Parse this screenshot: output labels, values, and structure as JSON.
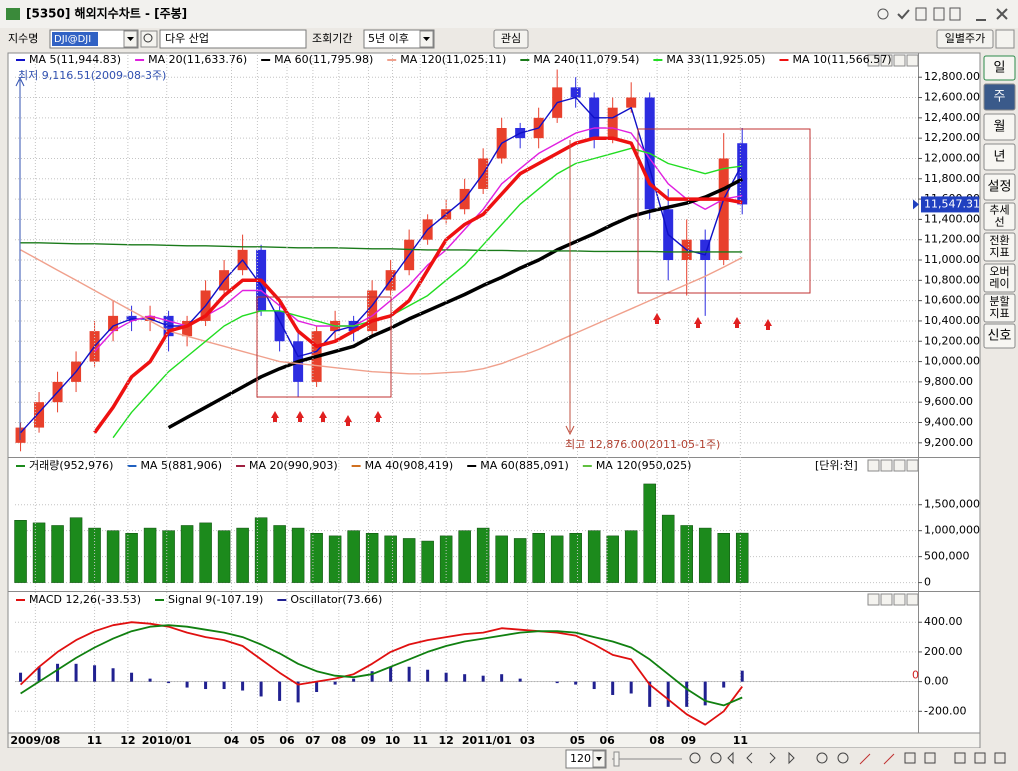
{
  "window": {
    "title": "[5350] 해외지수차트 - [주봉]"
  },
  "toolbar": {
    "index_label": "지수명",
    "index_code": "DJI@DJI",
    "index_name": "다우 산업",
    "period_label": "조회기간",
    "period_value": "5년 이후",
    "watch_button": "관심",
    "daily_button": "일별주가"
  },
  "side_buttons": [
    [
      "일"
    ],
    [
      "주"
    ],
    [
      "월"
    ],
    [
      "년"
    ],
    [
      "설정"
    ],
    [
      "추세",
      "선"
    ],
    [
      "전환",
      "지표"
    ],
    [
      "오버",
      "레이"
    ],
    [
      "분할",
      "지표"
    ],
    [
      "신호"
    ]
  ],
  "bottom_bar": {
    "count": "120"
  },
  "chart_data": [
    {
      "type": "candlestick",
      "xlim": [
        -0.3,
        48.5
      ],
      "ylim": [
        9080,
        12940
      ],
      "grid": true,
      "up_color": "#e8402c",
      "down_color": "#2c2ce0",
      "low_label": "최저 9,116.51(2009-08-3주)",
      "high_label": "최고 12,876.00(2011-05-1주)",
      "last_label": "11,547.31",
      "yticks": [
        {
          "value": 9200,
          "label": "9,200.00"
        },
        {
          "value": 9400,
          "label": "9,400.00"
        },
        {
          "value": 9600,
          "label": "9,600.00"
        },
        {
          "value": 9800,
          "label": "9,800.00"
        },
        {
          "value": 10000,
          "label": "10,000.00"
        },
        {
          "value": 10200,
          "label": "10,200.00"
        },
        {
          "value": 10400,
          "label": "10,400.00"
        },
        {
          "value": 10600,
          "label": "10,600.00"
        },
        {
          "value": 10800,
          "label": "10,800.00"
        },
        {
          "value": 11000,
          "label": "11,000.00"
        },
        {
          "value": 11200,
          "label": "11,200.00"
        },
        {
          "value": 11400,
          "label": "11,400.00"
        },
        {
          "value": 11600,
          "label": "11,600.00"
        },
        {
          "value": 11800,
          "label": "11,800.00"
        },
        {
          "value": 12000,
          "label": "12,000.00"
        },
        {
          "value": 12200,
          "label": "12,200.00"
        },
        {
          "value": 12400,
          "label": "12,400.00"
        },
        {
          "value": 12600,
          "label": "12,600.00"
        },
        {
          "value": 12800,
          "label": "12,800.00"
        }
      ],
      "x": [
        0,
        1,
        2,
        3,
        4,
        5,
        6,
        7,
        8,
        9,
        10,
        11,
        12,
        13,
        14,
        15,
        16,
        17,
        18,
        19,
        20,
        21,
        22,
        23,
        24,
        25,
        26,
        27,
        28,
        29,
        30,
        31,
        32,
        33,
        34,
        35,
        36,
        37,
        38,
        39
      ],
      "open": [
        9200,
        9350,
        9600,
        9800,
        10000,
        10300,
        10450,
        10400,
        10450,
        10250,
        10400,
        10700,
        10900,
        11100,
        10500,
        10200,
        9800,
        10300,
        10400,
        10300,
        10700,
        10900,
        11200,
        11400,
        11500,
        11700,
        12000,
        12300,
        12200,
        12400,
        12700,
        12600,
        12200,
        12500,
        12600,
        11500,
        11000,
        11200,
        11000,
        12150
      ],
      "high": [
        9400,
        9700,
        9900,
        10100,
        10400,
        10600,
        10550,
        10550,
        10500,
        10450,
        10800,
        11000,
        11250,
        11150,
        10600,
        10300,
        10350,
        10500,
        10450,
        10800,
        11000,
        11300,
        11450,
        11600,
        11800,
        12100,
        12400,
        12350,
        12500,
        12876,
        12800,
        12650,
        12600,
        12750,
        12650,
        11700,
        11400,
        11300,
        12250,
        12300
      ],
      "low": [
        9116.51,
        9300,
        9500,
        9700,
        9950,
        10200,
        10300,
        10300,
        10100,
        10150,
        10350,
        10650,
        10850,
        10450,
        10100,
        9650,
        9750,
        10200,
        10200,
        10250,
        10650,
        10850,
        11150,
        11350,
        11450,
        11650,
        11950,
        12100,
        12100,
        12350,
        12500,
        12100,
        12150,
        12450,
        11400,
        10800,
        10650,
        10450,
        10950,
        11450
      ],
      "close": [
        9350,
        9600,
        9800,
        10000,
        10300,
        10450,
        10400,
        10450,
        10250,
        10400,
        10700,
        10900,
        11100,
        10500,
        10200,
        9800,
        10300,
        10400,
        10300,
        10700,
        10900,
        11200,
        11400,
        11500,
        11700,
        12000,
        12300,
        12200,
        12400,
        12700,
        12600,
        12200,
        12500,
        12600,
        11500,
        11000,
        11200,
        11000,
        12000,
        11547.31
      ],
      "series": [
        {
          "name": "MA 5(11,944.83)",
          "color": "#1010c8",
          "values": [
            9300,
            9500,
            9700,
            9900,
            10150,
            10350,
            10420,
            10420,
            10350,
            10350,
            10550,
            10800,
            11000,
            10750,
            10400,
            10050,
            10100,
            10300,
            10350,
            10550,
            10800,
            11050,
            11300,
            11450,
            11600,
            11850,
            12150,
            12250,
            12300,
            12550,
            12600,
            12400,
            12400,
            12500,
            11900,
            11250,
            11100,
            11050,
            11600,
            11944.83
          ]
        },
        {
          "name": "MA 20(11,633.76)",
          "color": "#e020e0",
          "values": [
            null,
            null,
            null,
            null,
            10100,
            10300,
            10400,
            10450,
            10400,
            10350,
            10450,
            10550,
            10700,
            10700,
            10550,
            10400,
            10350,
            10350,
            10350,
            10450,
            10600,
            10750,
            10950,
            11100,
            11300,
            11500,
            11750,
            11900,
            12050,
            12150,
            12250,
            12300,
            12300,
            12250,
            12000,
            11750,
            11600,
            11500,
            11600,
            11633.76
          ]
        },
        {
          "name": "MA 60(11,795.98)",
          "color": "#000000",
          "style": "thick",
          "values": [
            null,
            null,
            null,
            null,
            null,
            null,
            null,
            null,
            9350,
            9450,
            9550,
            9650,
            9750,
            9850,
            9930,
            10000,
            10050,
            10100,
            10150,
            10250,
            10330,
            10420,
            10500,
            10580,
            10660,
            10750,
            10830,
            10920,
            11000,
            11100,
            11180,
            11260,
            11350,
            11430,
            11480,
            11520,
            11560,
            11620,
            11700,
            11795.98
          ]
        },
        {
          "name": "MA 120(11,025.11)",
          "color": "#f0a08c",
          "values": [
            11100,
            11000,
            10900,
            10800,
            10700,
            10600,
            10500,
            10400,
            10300,
            10250,
            10200,
            10150,
            10100,
            10050,
            10000,
            9980,
            9960,
            9940,
            9920,
            9900,
            9890,
            9880,
            9880,
            9890,
            9900,
            9930,
            9980,
            10050,
            10120,
            10200,
            10280,
            10360,
            10440,
            10520,
            10600,
            10680,
            10760,
            10840,
            10930,
            11025.11
          ]
        },
        {
          "name": "MA 240(11,079.54)",
          "color": "#1a7a1a",
          "values": [
            11170,
            11170,
            11165,
            11160,
            11160,
            11155,
            11150,
            11150,
            11145,
            11140,
            11140,
            11135,
            11130,
            11130,
            11125,
            11120,
            11120,
            11120,
            11115,
            11110,
            11110,
            11105,
            11100,
            11100,
            11100,
            11095,
            11095,
            11090,
            11090,
            11090,
            11090,
            11085,
            11085,
            11085,
            11085,
            11080,
            11080,
            11080,
            11080,
            11079.54
          ]
        },
        {
          "name": "MA 33(11,925.05)",
          "color": "#22dd22",
          "values": [
            null,
            null,
            null,
            null,
            null,
            9250,
            9500,
            9700,
            9900,
            10050,
            10200,
            10350,
            10450,
            10500,
            10500,
            10450,
            10400,
            10350,
            10350,
            10400,
            10450,
            10550,
            10650,
            10800,
            10950,
            11150,
            11350,
            11550,
            11700,
            11850,
            11950,
            12000,
            12050,
            12100,
            12050,
            11950,
            11900,
            11850,
            11900,
            11925.05
          ]
        },
        {
          "name": "MA 10(11,566.57)",
          "color": "#ee1111",
          "style": "thick",
          "values": [
            null,
            null,
            null,
            null,
            9300,
            9550,
            9850,
            10000,
            10300,
            10350,
            10450,
            10650,
            10800,
            10800,
            10600,
            10300,
            10150,
            10200,
            10300,
            10400,
            10450,
            10600,
            10900,
            11200,
            11350,
            11450,
            11650,
            11850,
            11950,
            12050,
            12150,
            12200,
            12200,
            12150,
            11750,
            11600,
            11600,
            11600,
            11600,
            11566.57
          ]
        }
      ]
    },
    {
      "type": "bar",
      "name": "거래량(952,976)",
      "color": "#1c8a1c",
      "unit_label": "[단위:천]",
      "xlim": [
        -0.3,
        48.5
      ],
      "ylim": [
        -85000,
        2130000
      ],
      "grid": true,
      "indicators": [
        {
          "name": "MA 5(881,906)",
          "color": "#2060c0"
        },
        {
          "name": "MA 20(990,903)",
          "color": "#a02040"
        },
        {
          "name": "MA 40(908,419)",
          "color": "#d07020"
        },
        {
          "name": "MA 60(885,091)",
          "color": "#000000"
        },
        {
          "name": "MA 120(950,025)",
          "color": "#60c040"
        }
      ],
      "yticks": [
        0,
        {
          "value": 500000,
          "label": "500,000"
        },
        {
          "value": 1000000,
          "label": "1,000,000"
        },
        {
          "value": 1500000,
          "label": "1,500,000"
        }
      ],
      "x": [
        0,
        1,
        2,
        3,
        4,
        5,
        6,
        7,
        8,
        9,
        10,
        11,
        12,
        13,
        14,
        15,
        16,
        17,
        18,
        19,
        20,
        21,
        22,
        23,
        24,
        25,
        26,
        27,
        28,
        29,
        30,
        31,
        32,
        33,
        34,
        35,
        36,
        37,
        38,
        39
      ],
      "values": [
        1200000,
        1150000,
        1100000,
        1250000,
        1050000,
        1000000,
        950000,
        1050000,
        1000000,
        1100000,
        1150000,
        1000000,
        1050000,
        1250000,
        1100000,
        1050000,
        950000,
        900000,
        1000000,
        950000,
        900000,
        850000,
        800000,
        900000,
        1000000,
        1050000,
        900000,
        850000,
        950000,
        900000,
        950000,
        1000000,
        900000,
        1000000,
        1900000,
        1300000,
        1100000,
        1050000,
        950000,
        952976
      ]
    },
    {
      "type": "line",
      "xlim": [
        -0.3,
        48.5
      ],
      "ylim": [
        -326,
        496
      ],
      "grid": true,
      "reference_line": 0,
      "yticks": [
        {
          "value": -200,
          "label": "-200.00"
        },
        {
          "value": 0,
          "label": "0.00"
        },
        {
          "value": 200,
          "label": "200.00"
        },
        {
          "value": 400,
          "label": "400.00"
        }
      ],
      "xticks": [
        {
          "value": 0.8,
          "label": "2009/08"
        },
        {
          "value": 4.0,
          "label": "11"
        },
        {
          "value": 5.8,
          "label": "12"
        },
        {
          "value": 7.9,
          "label": "2010/01"
        },
        {
          "value": 11.4,
          "label": "04"
        },
        {
          "value": 12.8,
          "label": "05"
        },
        {
          "value": 14.4,
          "label": "06"
        },
        {
          "value": 15.8,
          "label": "07"
        },
        {
          "value": 17.2,
          "label": "08"
        },
        {
          "value": 18.8,
          "label": "09"
        },
        {
          "value": 20.1,
          "label": "10"
        },
        {
          "value": 21.6,
          "label": "11"
        },
        {
          "value": 23.0,
          "label": "12"
        },
        {
          "value": 25.2,
          "label": "2011/01"
        },
        {
          "value": 27.4,
          "label": "03"
        },
        {
          "value": 30.1,
          "label": "05"
        },
        {
          "value": 31.7,
          "label": "06"
        },
        {
          "value": 34.4,
          "label": "08"
        },
        {
          "value": 36.1,
          "label": "09"
        },
        {
          "value": 38.9,
          "label": "11"
        }
      ],
      "x": [
        0,
        1,
        2,
        3,
        4,
        5,
        6,
        7,
        8,
        9,
        10,
        11,
        12,
        13,
        14,
        15,
        16,
        17,
        18,
        19,
        20,
        21,
        22,
        23,
        24,
        25,
        26,
        27,
        28,
        29,
        30,
        31,
        32,
        33,
        34,
        35,
        36,
        37,
        38,
        39
      ],
      "series": [
        {
          "name": "MACD 12,26(-33.53)",
          "color": "#e01010",
          "values": [
            -20,
            100,
            200,
            280,
            340,
            380,
            400,
            390,
            370,
            330,
            300,
            280,
            240,
            150,
            60,
            -20,
            0,
            20,
            50,
            120,
            200,
            250,
            280,
            300,
            320,
            330,
            360,
            350,
            340,
            330,
            310,
            250,
            180,
            150,
            -20,
            -120,
            -220,
            -290,
            -200,
            -33.53
          ]
        },
        {
          "name": "Signal 9(-107.19)",
          "color": "#108010",
          "values": [
            -80,
            0,
            80,
            160,
            230,
            290,
            340,
            370,
            380,
            370,
            350,
            330,
            300,
            250,
            190,
            120,
            70,
            40,
            30,
            50,
            100,
            150,
            200,
            240,
            270,
            290,
            310,
            330,
            340,
            340,
            330,
            300,
            270,
            230,
            150,
            50,
            -50,
            -130,
            -160,
            -107.19
          ]
        },
        {
          "name": "Oscillator(73.66)",
          "color": "#202090",
          "style": "bar",
          "values": [
            60,
            100,
            120,
            120,
            110,
            90,
            60,
            20,
            -10,
            -40,
            -50,
            -50,
            -60,
            -100,
            -130,
            -140,
            -70,
            -20,
            20,
            70,
            100,
            100,
            80,
            60,
            50,
            40,
            50,
            20,
            0,
            -10,
            -20,
            -50,
            -90,
            -80,
            -170,
            -170,
            -170,
            -160,
            -40,
            73.66
          ]
        }
      ]
    }
  ]
}
